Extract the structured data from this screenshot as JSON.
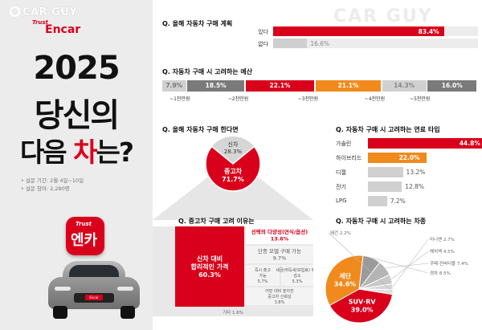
{
  "left_panel": {
    "logo_carguy": "CAR GUY",
    "logo_trust": "Trust",
    "logo_encar": "Encar",
    "headline_line1": "2025",
    "headline_line2": "당신의",
    "headline_line3_part1": "다음 ",
    "headline_line3_red": "차",
    "headline_line3_part2": "는?",
    "survey_period": "• 설문 기간: 2월 4일~10일",
    "survey_participants": "• 설문 참여: 2,280명",
    "app_icon_trust": "Trust",
    "app_icon_text": "엔카",
    "car_plate": "Encar"
  },
  "watermark": "CAR GUY",
  "colors": {
    "red": "#d9001b",
    "orange": "#f08a1c",
    "grey": "#7a7a7a",
    "light_grey": "#cfcfcf"
  },
  "chart_data": [
    {
      "type": "bar",
      "title": "Q. 올해 자동차 구매 계획",
      "categories": [
        "있다",
        "없다"
      ],
      "values": [
        83.4,
        16.6
      ],
      "labels": [
        "83.4%",
        "16.6%"
      ],
      "xlim": [
        0,
        100
      ]
    },
    {
      "type": "bar",
      "title": "Q. 자동차 구매 시 고려하는 예산",
      "categories": [
        "~1천만원",
        "~2천만원",
        "~3천만원",
        "~4천만원",
        "~5천만원",
        ""
      ],
      "values": [
        7.9,
        18.5,
        22.1,
        21.1,
        14.3,
        16.0
      ],
      "labels": [
        "7.9%",
        "18.5%",
        "22.1%",
        "21.1%",
        "14.3%",
        "16.0%"
      ]
    },
    {
      "type": "pie",
      "title": "Q. 올해 자동차 구매 한다면",
      "categories": [
        "신차",
        "중고차"
      ],
      "values": [
        28.3,
        71.7
      ],
      "labels": [
        "28.3%",
        "71.7%"
      ]
    },
    {
      "type": "bar",
      "title": "Q. 자동차 구매 시 고려하는 연료 타입",
      "categories": [
        "가솔린",
        "하이브리드",
        "디젤",
        "전기",
        "LPG"
      ],
      "values": [
        44.8,
        22.0,
        13.2,
        12.8,
        7.2
      ],
      "labels": [
        "44.8%",
        "22.0%",
        "13.2%",
        "12.8%",
        "7.2%"
      ],
      "xlim": [
        0,
        50
      ]
    },
    {
      "type": "heatmap",
      "title": "Q. 중고차 구매 고려 이유는",
      "categories": [
        "신차 대비 합리적인 가격",
        "선택의 다양성(연식/옵션)",
        "단종 모델 구매 가능",
        "즉시 출고 가능",
        "세금(취득세/보험료) 부담 감소",
        "어떤 대비 높아진 중고차 신뢰성",
        "기타"
      ],
      "values": [
        60.3,
        13.6,
        9.7,
        5.7,
        5.3,
        3.8,
        1.6
      ],
      "labels": [
        "60.3%",
        "13.6%",
        "9.7%",
        "5.7%",
        "5.3%",
        "3.8%",
        "기타 1.6%"
      ]
    },
    {
      "type": "pie",
      "title": "Q. 자동차 구매 시 고려하는 차종",
      "categories": [
        "SUV·RV",
        "세단",
        "경차",
        "쿠페·컨버터블",
        "해치백",
        "미니밴",
        "왜건"
      ],
      "values": [
        39.0,
        34.6,
        8.5,
        7.4,
        4.5,
        2.7,
        2.2
      ],
      "labels": [
        "39.0%",
        "34.6%",
        "경차 8.5%",
        "쿠페·컨버터블 7.4%",
        "해치백 4.5%",
        "미니밴 2.7%",
        "왜건 2.2%"
      ]
    }
  ]
}
